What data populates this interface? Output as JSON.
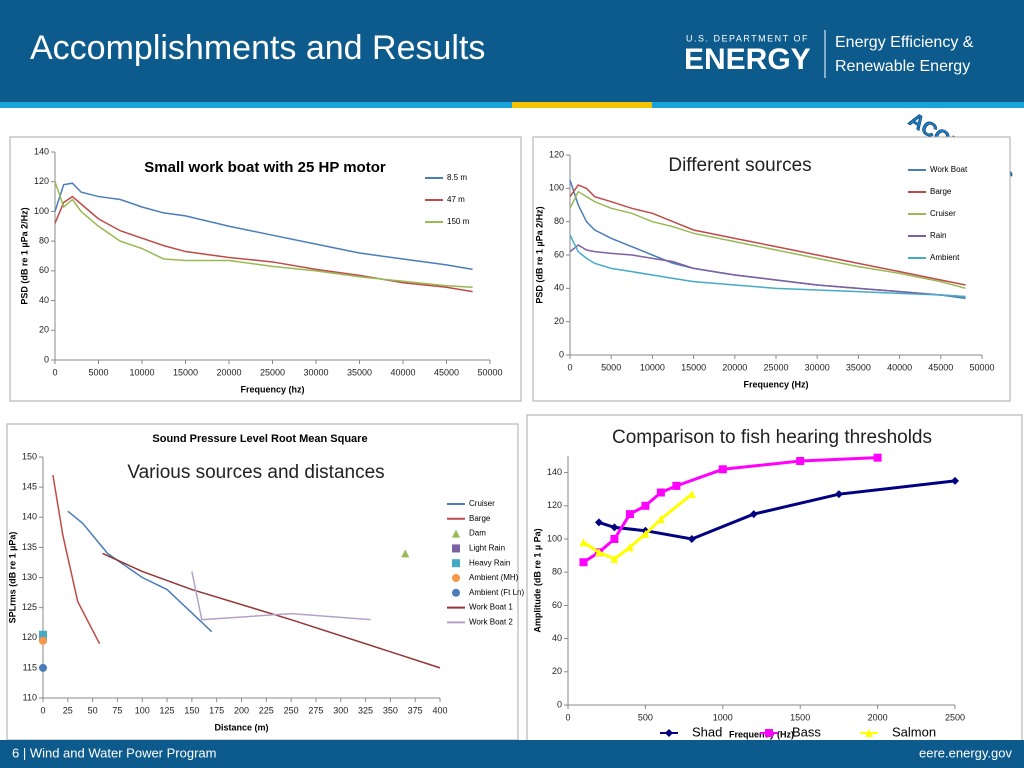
{
  "header": {
    "title": "Accomplishments and Results",
    "logo_top": "U.S. DEPARTMENT OF",
    "logo_main": "ENERGY",
    "logo_right_1": "Energy Efficiency &",
    "logo_right_2": "Renewable Energy",
    "badge": "ACOUSTICS"
  },
  "footer": {
    "left": "6 | Wind and Water Power Program",
    "right": "eere.energy.gov"
  },
  "chart_data": [
    {
      "type": "line",
      "title": "Small work boat with 25 HP motor",
      "xlabel": "Frequency (hz)",
      "ylabel": "PSD (dB re 1 µPa 2/Hz)",
      "legend": "upper right",
      "x": [
        0,
        1000,
        2000,
        3000,
        5000,
        7500,
        10000,
        12500,
        15000,
        20000,
        25000,
        30000,
        35000,
        40000,
        45000,
        48000
      ],
      "xlim": [
        0,
        50000
      ],
      "xticks": [
        0,
        5000,
        10000,
        15000,
        20000,
        25000,
        30000,
        35000,
        40000,
        45000,
        50000
      ],
      "ylim": [
        0,
        140
      ],
      "yticks": [
        0,
        20,
        40,
        60,
        80,
        100,
        120,
        140
      ],
      "series": [
        {
          "name": "8.5 m",
          "color": "#4a7ebb",
          "values": [
            100,
            118,
            119,
            113,
            110,
            108,
            103,
            99,
            97,
            90,
            84,
            78,
            72,
            68,
            64,
            61
          ]
        },
        {
          "name": "47 m",
          "color": "#be4b48",
          "values": [
            92,
            106,
            110,
            105,
            95,
            87,
            82,
            77,
            73,
            69,
            66,
            61,
            57,
            52,
            49,
            46
          ]
        },
        {
          "name": "150 m",
          "color": "#98b954",
          "values": [
            120,
            103,
            108,
            100,
            90,
            80,
            75,
            68,
            67,
            67,
            63,
            60,
            56,
            53,
            50,
            49
          ]
        }
      ]
    },
    {
      "type": "line",
      "annotation": "Different sources",
      "xlabel": "Frequency (Hz)",
      "ylabel": "PSD (dB re 1 µPa 2/Hz)",
      "legend": "upper right",
      "x": [
        0,
        1000,
        2000,
        3000,
        5000,
        7500,
        10000,
        12500,
        15000,
        20000,
        25000,
        30000,
        35000,
        40000,
        45000,
        48000
      ],
      "xlim": [
        0,
        50000
      ],
      "xticks": [
        0,
        5000,
        10000,
        15000,
        20000,
        25000,
        30000,
        35000,
        40000,
        45000,
        50000
      ],
      "ylim": [
        0,
        120
      ],
      "yticks": [
        0,
        20,
        40,
        60,
        80,
        100,
        120
      ],
      "series": [
        {
          "name": "Work Boat",
          "color": "#4a7ebb",
          "values": [
            105,
            90,
            80,
            75,
            70,
            65,
            60,
            55,
            52,
            48,
            45,
            42,
            40,
            38,
            36,
            34
          ]
        },
        {
          "name": "Barge",
          "color": "#be4b48",
          "values": [
            95,
            102,
            100,
            95,
            92,
            88,
            85,
            80,
            75,
            70,
            65,
            60,
            55,
            50,
            45,
            42
          ]
        },
        {
          "name": "Cruiser",
          "color": "#98b954",
          "values": [
            88,
            98,
            95,
            92,
            88,
            85,
            80,
            77,
            73,
            68,
            63,
            58,
            53,
            49,
            44,
            40
          ]
        },
        {
          "name": "Rain",
          "color": "#7d60a0",
          "values": [
            62,
            66,
            63,
            62,
            61,
            60,
            58,
            56,
            52,
            48,
            45,
            42,
            40,
            38,
            36,
            35
          ]
        },
        {
          "name": "Ambient",
          "color": "#46aac5",
          "values": [
            72,
            62,
            58,
            55,
            52,
            50,
            48,
            46,
            44,
            42,
            40,
            39,
            38,
            37,
            36,
            35
          ]
        }
      ]
    },
    {
      "type": "line",
      "title": "Sound Pressure Level Root Mean Square",
      "annotation": "Various sources and distances",
      "xlabel": "Distance (m)",
      "ylabel": "SPLrms (dB re 1 µPa)",
      "legend": "right",
      "xlim": [
        0,
        400
      ],
      "xticks": [
        0,
        25,
        50,
        75,
        100,
        125,
        150,
        175,
        200,
        225,
        250,
        275,
        300,
        325,
        350,
        375,
        400
      ],
      "ylim": [
        110,
        150
      ],
      "yticks": [
        110,
        115,
        120,
        125,
        130,
        135,
        140,
        145,
        150
      ],
      "series": [
        {
          "name": "Cruiser",
          "color": "#4a7ebb",
          "x": [
            25,
            40,
            65,
            100,
            125,
            170
          ],
          "values": [
            141,
            139,
            134,
            130,
            128,
            121
          ]
        },
        {
          "name": "Barge",
          "color": "#be4b48",
          "x": [
            10,
            20,
            35,
            57
          ],
          "values": [
            147,
            137,
            126,
            119
          ]
        },
        {
          "name": "Dam",
          "color": "#98b954",
          "marker": "triangle",
          "line": false,
          "x": [
            365
          ],
          "values": [
            134
          ]
        },
        {
          "name": "Light Rain",
          "color": "#7d60a0",
          "marker": "square",
          "line": false,
          "x": [
            0
          ],
          "values": [
            120
          ]
        },
        {
          "name": "Heavy Rain",
          "color": "#46aac5",
          "marker": "square",
          "line": false,
          "x": [
            0
          ],
          "values": [
            120.5
          ]
        },
        {
          "name": "Ambient (MH)",
          "color": "#f79646",
          "marker": "circle",
          "line": false,
          "x": [
            0
          ],
          "values": [
            119.5
          ]
        },
        {
          "name": "Ambient (Ft Ln)",
          "color": "#4a7ebb",
          "marker": "circle",
          "line": false,
          "x": [
            0
          ],
          "values": [
            115
          ]
        },
        {
          "name": "Work Boat 1",
          "color": "#943634",
          "x": [
            60,
            100,
            150,
            250,
            400
          ],
          "values": [
            134,
            131,
            128,
            123,
            115
          ]
        },
        {
          "name": "Work Boat 2",
          "color": "#b3a2c7",
          "x": [
            150,
            160,
            250,
            330
          ],
          "values": [
            131,
            123,
            124,
            123
          ]
        }
      ]
    },
    {
      "type": "line",
      "annotation": "Comparison to fish hearing thresholds",
      "xlabel": "Frequency (Hz)",
      "ylabel": "Amplitude (dB re 1 µ Pa)",
      "legend": "bottom",
      "xlim": [
        0,
        2500
      ],
      "xticks": [
        0,
        500,
        1000,
        1500,
        2000,
        2500
      ],
      "ylim": [
        0,
        150
      ],
      "yticks": [
        0,
        20,
        40,
        60,
        80,
        100,
        120,
        140
      ],
      "series": [
        {
          "name": "Shad",
          "color": "#000080",
          "marker": "diamond",
          "x": [
            200,
            300,
            500,
            800,
            1200,
            1750,
            2500
          ],
          "values": [
            110,
            107,
            105,
            100,
            115,
            127,
            135
          ]
        },
        {
          "name": "Bass",
          "color": "#ff00ff",
          "marker": "square",
          "x": [
            100,
            200,
            300,
            400,
            500,
            600,
            700,
            1000,
            1500,
            2000
          ],
          "values": [
            86,
            92,
            100,
            115,
            120,
            128,
            132,
            142,
            147,
            149
          ]
        },
        {
          "name": "Salmon",
          "color": "#ffff00",
          "marker": "triangle",
          "x": [
            100,
            200,
            300,
            400,
            500,
            600,
            800
          ],
          "values": [
            98,
            92,
            88,
            95,
            103,
            112,
            127
          ]
        }
      ]
    }
  ]
}
